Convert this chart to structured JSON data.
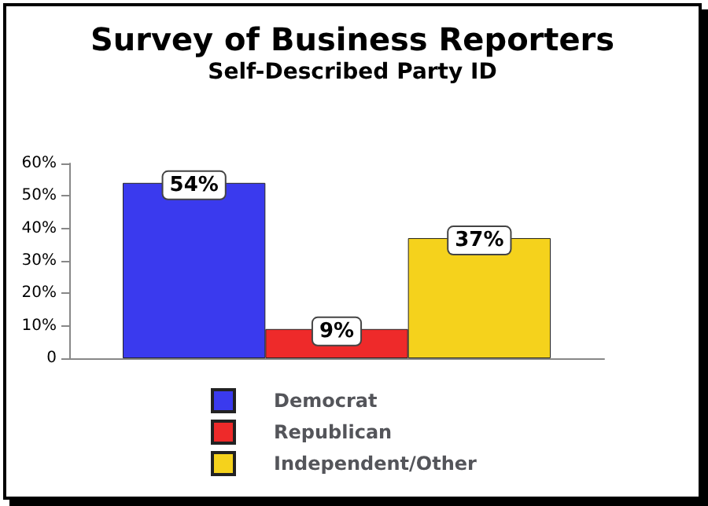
{
  "chart_data": {
    "type": "bar",
    "title": "Survey of Business Reporters",
    "subtitle": "Self-Described Party ID",
    "categories": [
      null
    ],
    "series": [
      {
        "name": "Democrat",
        "color": "#3a3aee",
        "values": [
          54
        ],
        "value_labels": [
          "54%"
        ]
      },
      {
        "name": "Republican",
        "color": "#ee2a2a",
        "values": [
          9
        ],
        "value_labels": [
          "9%"
        ]
      },
      {
        "name": "Independent/Other",
        "color": "#f5d21c",
        "values": [
          37
        ],
        "value_labels": [
          "37%"
        ]
      }
    ],
    "ylim": [
      0,
      60
    ],
    "yticks": [
      0,
      {
        "value": 10,
        "label": "10%"
      },
      {
        "value": 20,
        "label": "20%"
      },
      {
        "value": 30,
        "label": "30%"
      },
      {
        "value": 40,
        "label": "40%"
      },
      {
        "value": 50,
        "label": "50%"
      },
      {
        "value": 60,
        "label": "60%"
      }
    ],
    "legend": "bottom"
  }
}
